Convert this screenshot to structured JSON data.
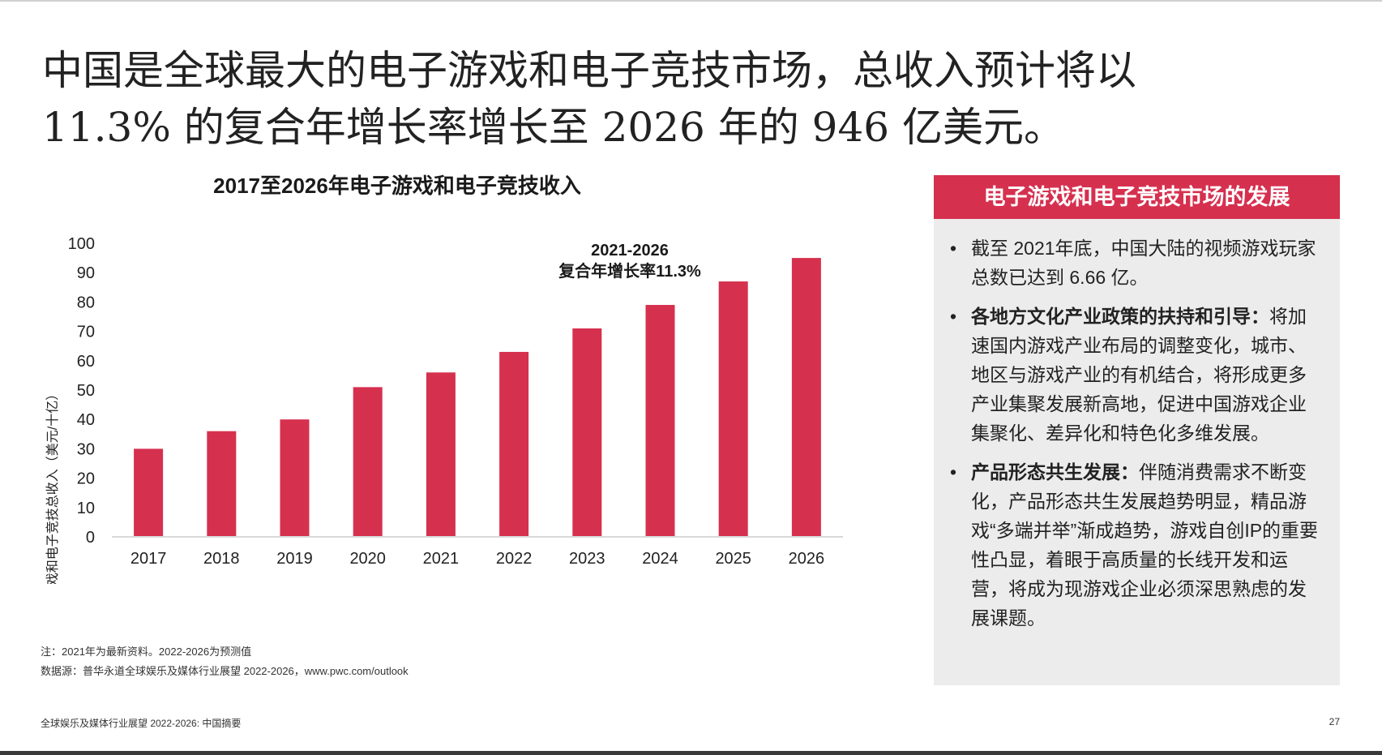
{
  "headline": {
    "line1": "中国是全球最大的电子游戏和电子竞技市场，总收入预计将以",
    "line2": "11.3% 的复合年增长率增长至 2026 年的 946 亿美元。"
  },
  "chart_data": {
    "type": "bar",
    "title": "2017至2026年电子游戏和电子竞技收入",
    "ylabel": "中国电子游戏和电子竞技总收入（美元/十亿）",
    "xlabel": "",
    "categories": [
      "2017",
      "2018",
      "2019",
      "2020",
      "2021",
      "2022",
      "2023",
      "2024",
      "2025",
      "2026"
    ],
    "values": [
      30,
      36,
      40,
      51,
      56,
      63,
      71,
      79,
      87,
      95
    ],
    "ylim": [
      0,
      100
    ],
    "yticks": [
      0,
      10,
      20,
      30,
      40,
      50,
      60,
      70,
      80,
      90,
      100
    ],
    "bar_color": "#d6304f",
    "grid": false,
    "annotation": {
      "line1": "2021-2026",
      "line2": "复合年增长率11.3%"
    }
  },
  "panel": {
    "title": "电子游戏和电子竞技市场的发展",
    "items": [
      {
        "bold": "",
        "text": "截至  2021年底，中国大陆的视频游戏玩家总数已达到 6.66 亿。"
      },
      {
        "bold": "各地方文化产业政策的扶持和引导：",
        "text": "将加速国内游戏产业布局的调整变化，城市、地区与游戏产业的有机结合，将形成更多产业集聚发展新高地，促进中国游戏企业集聚化、差异化和特色化多维发展。"
      },
      {
        "bold": "产品形态共生发展：",
        "text": "伴随消费需求不断变化，产品形态共生发展趋势明显，精品游戏“多端并举”渐成趋势，游戏自创IP的重要性凸显，着眼于高质量的长线开发和运营，将成为现游戏企业必须深思熟虑的发展课题。"
      }
    ]
  },
  "notes": {
    "note": "注：2021年为最新资料。2022-2026为预测值",
    "source": "数据源：普华永道全球娱乐及媒体行业展望 2022-2026，www.pwc.com/outlook"
  },
  "footer": {
    "left": "全球娱乐及媒体行业展望 2022-2026: 中国摘要",
    "page": "27"
  },
  "colors": {
    "accent": "#d6304f",
    "panel_bg": "#ececec"
  }
}
